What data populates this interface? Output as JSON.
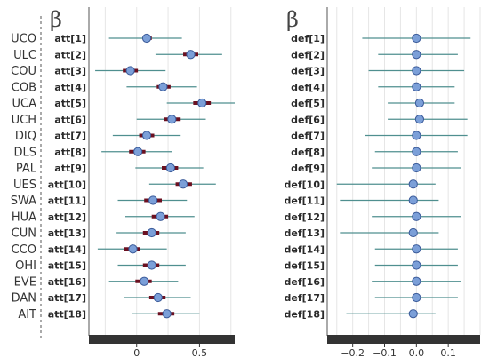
{
  "teams": [
    "UCO",
    "ULC",
    "COU",
    "COB",
    "UCA",
    "UCH",
    "DIQ",
    "DLS",
    "PAL",
    "UES",
    "SWA",
    "HUA",
    "CUN",
    "CCO",
    "OHI",
    "EVE",
    "DAN",
    "AIT"
  ],
  "chart_data": [
    {
      "type": "forest",
      "title": "β",
      "x_ticks": [
        0,
        0.5
      ],
      "xlim": [
        -0.38,
        0.78
      ],
      "colors": {
        "interval": "#4f8f8f",
        "inner": "#6b1020",
        "point": "#7b9fd8",
        "point_edge": "#3a5a99"
      },
      "rows": [
        {
          "label": "att[1]",
          "mean": 0.08,
          "inner": [
            0.05,
            0.12
          ],
          "outer": [
            -0.22,
            0.36
          ]
        },
        {
          "label": "att[2]",
          "mean": 0.43,
          "inner": [
            0.37,
            0.49
          ],
          "outer": [
            0.15,
            0.68
          ]
        },
        {
          "label": "att[3]",
          "mean": -0.05,
          "inner": [
            -0.11,
            0.01
          ],
          "outer": [
            -0.33,
            0.23
          ]
        },
        {
          "label": "att[4]",
          "mean": 0.21,
          "inner": [
            0.16,
            0.27
          ],
          "outer": [
            -0.08,
            0.48
          ]
        },
        {
          "label": "att[5]",
          "mean": 0.52,
          "inner": [
            0.45,
            0.59
          ],
          "outer": [
            0.24,
            0.78
          ]
        },
        {
          "label": "att[6]",
          "mean": 0.28,
          "inner": [
            0.22,
            0.35
          ],
          "outer": [
            0.0,
            0.55
          ]
        },
        {
          "label": "att[7]",
          "mean": 0.08,
          "inner": [
            0.02,
            0.14
          ],
          "outer": [
            -0.19,
            0.35
          ]
        },
        {
          "label": "att[8]",
          "mean": 0.01,
          "inner": [
            -0.06,
            0.07
          ],
          "outer": [
            -0.28,
            0.28
          ]
        },
        {
          "label": "att[9]",
          "mean": 0.27,
          "inner": [
            0.2,
            0.33
          ],
          "outer": [
            -0.01,
            0.53
          ]
        },
        {
          "label": "att[10]",
          "mean": 0.37,
          "inner": [
            0.31,
            0.44
          ],
          "outer": [
            0.1,
            0.63
          ]
        },
        {
          "label": "att[11]",
          "mean": 0.13,
          "inner": [
            0.06,
            0.2
          ],
          "outer": [
            -0.15,
            0.4
          ]
        },
        {
          "label": "att[12]",
          "mean": 0.19,
          "inner": [
            0.12,
            0.25
          ],
          "outer": [
            -0.09,
            0.46
          ]
        },
        {
          "label": "att[13]",
          "mean": 0.12,
          "inner": [
            0.05,
            0.18
          ],
          "outer": [
            -0.16,
            0.39
          ]
        },
        {
          "label": "att[14]",
          "mean": -0.03,
          "inner": [
            -0.1,
            0.03
          ],
          "outer": [
            -0.31,
            0.24
          ]
        },
        {
          "label": "att[15]",
          "mean": 0.12,
          "inner": [
            0.05,
            0.18
          ],
          "outer": [
            -0.15,
            0.39
          ]
        },
        {
          "label": "att[16]",
          "mean": 0.06,
          "inner": [
            -0.01,
            0.12
          ],
          "outer": [
            -0.22,
            0.33
          ]
        },
        {
          "label": "att[17]",
          "mean": 0.17,
          "inner": [
            0.1,
            0.23
          ],
          "outer": [
            -0.1,
            0.43
          ]
        },
        {
          "label": "att[18]",
          "mean": 0.24,
          "inner": [
            0.17,
            0.3
          ],
          "outer": [
            -0.04,
            0.5
          ]
        }
      ]
    },
    {
      "type": "forest",
      "title": "β",
      "x_ticks": [
        -0.2,
        -0.1,
        0.0,
        0.1
      ],
      "tick_labels": [
        "−0.2",
        "−0.1",
        "0.0",
        "0.1"
      ],
      "xlim": [
        -0.28,
        0.2
      ],
      "colors": {
        "interval": "#4f8f8f",
        "inner": "#6b1020",
        "point": "#7b9fd8",
        "point_edge": "#3a5a99"
      },
      "rows": [
        {
          "label": "def[1]",
          "mean": 0.0,
          "inner": [
            -0.01,
            0.01
          ],
          "outer": [
            -0.17,
            0.17
          ]
        },
        {
          "label": "def[2]",
          "mean": 0.0,
          "inner": [
            -0.01,
            0.01
          ],
          "outer": [
            -0.12,
            0.13
          ]
        },
        {
          "label": "def[3]",
          "mean": 0.0,
          "inner": [
            -0.01,
            0.01
          ],
          "outer": [
            -0.15,
            0.15
          ]
        },
        {
          "label": "def[4]",
          "mean": 0.0,
          "inner": [
            -0.01,
            0.01
          ],
          "outer": [
            -0.12,
            0.12
          ]
        },
        {
          "label": "def[5]",
          "mean": 0.01,
          "inner": [
            0.0,
            0.02
          ],
          "outer": [
            -0.09,
            0.12
          ]
        },
        {
          "label": "def[6]",
          "mean": 0.01,
          "inner": [
            0.0,
            0.02
          ],
          "outer": [
            -0.09,
            0.16
          ]
        },
        {
          "label": "def[7]",
          "mean": 0.0,
          "inner": [
            -0.01,
            0.01
          ],
          "outer": [
            -0.16,
            0.16
          ]
        },
        {
          "label": "def[8]",
          "mean": 0.0,
          "inner": [
            -0.01,
            0.01
          ],
          "outer": [
            -0.13,
            0.13
          ]
        },
        {
          "label": "def[9]",
          "mean": 0.0,
          "inner": [
            -0.01,
            0.01
          ],
          "outer": [
            -0.14,
            0.14
          ]
        },
        {
          "label": "def[10]",
          "mean": -0.01,
          "inner": [
            -0.02,
            0.0
          ],
          "outer": [
            -0.25,
            0.06
          ]
        },
        {
          "label": "def[11]",
          "mean": -0.01,
          "inner": [
            -0.02,
            0.0
          ],
          "outer": [
            -0.24,
            0.07
          ]
        },
        {
          "label": "def[12]",
          "mean": 0.0,
          "inner": [
            -0.01,
            0.01
          ],
          "outer": [
            -0.14,
            0.14
          ]
        },
        {
          "label": "def[13]",
          "mean": -0.01,
          "inner": [
            -0.02,
            0.0
          ],
          "outer": [
            -0.24,
            0.07
          ]
        },
        {
          "label": "def[14]",
          "mean": 0.0,
          "inner": [
            -0.01,
            0.01
          ],
          "outer": [
            -0.13,
            0.13
          ]
        },
        {
          "label": "def[15]",
          "mean": 0.0,
          "inner": [
            -0.01,
            0.01
          ],
          "outer": [
            -0.13,
            0.13
          ]
        },
        {
          "label": "def[16]",
          "mean": 0.0,
          "inner": [
            -0.01,
            0.01
          ],
          "outer": [
            -0.14,
            0.14
          ]
        },
        {
          "label": "def[17]",
          "mean": 0.0,
          "inner": [
            -0.01,
            0.01
          ],
          "outer": [
            -0.13,
            0.13
          ]
        },
        {
          "label": "def[18]",
          "mean": -0.01,
          "inner": [
            -0.02,
            0.0
          ],
          "outer": [
            -0.22,
            0.06
          ]
        }
      ]
    }
  ]
}
